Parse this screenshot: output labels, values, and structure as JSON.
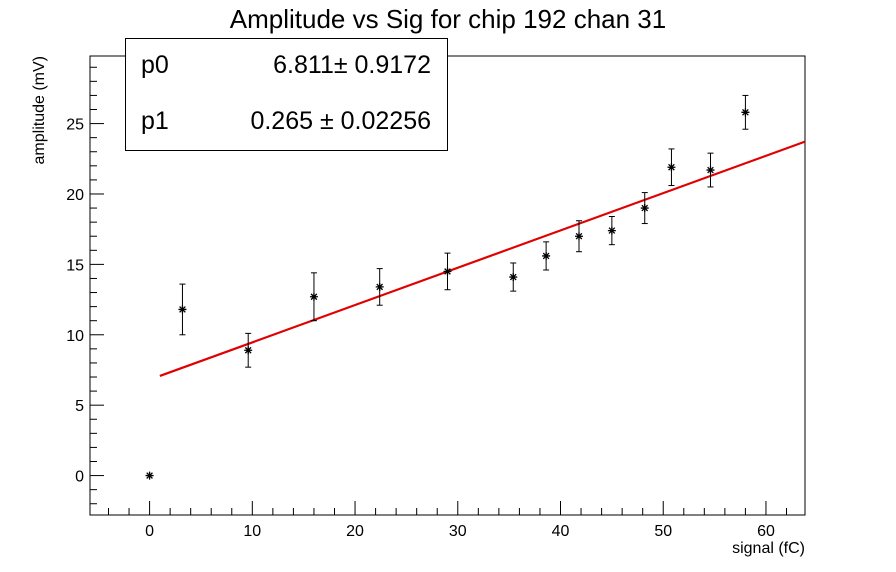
{
  "chart_data": {
    "type": "scatter",
    "title": "Amplitude vs Sig for chip 192 chan 31",
    "xlabel": "signal (fC)",
    "ylabel": "amplitude (mV)",
    "xlim": [
      -5.8,
      63.8
    ],
    "ylim": [
      -2.8,
      29.8
    ],
    "x_ticks": [
      0,
      10,
      20,
      30,
      40,
      50,
      60
    ],
    "y_ticks": [
      0,
      5,
      10,
      15,
      20,
      25
    ],
    "grid": false,
    "points": [
      {
        "x": 0.0,
        "y": 0.0,
        "err": 0.0
      },
      {
        "x": 3.2,
        "y": 11.8,
        "err": 1.8
      },
      {
        "x": 9.6,
        "y": 8.9,
        "err": 1.2
      },
      {
        "x": 16.0,
        "y": 12.7,
        "err": 1.7
      },
      {
        "x": 22.4,
        "y": 13.4,
        "err": 1.3
      },
      {
        "x": 29.0,
        "y": 14.5,
        "err": 1.3
      },
      {
        "x": 35.4,
        "y": 14.1,
        "err": 1.0
      },
      {
        "x": 38.6,
        "y": 15.6,
        "err": 1.0
      },
      {
        "x": 41.8,
        "y": 17.0,
        "err": 1.1
      },
      {
        "x": 45.0,
        "y": 17.4,
        "err": 1.0
      },
      {
        "x": 48.2,
        "y": 19.0,
        "err": 1.1
      },
      {
        "x": 50.8,
        "y": 21.9,
        "err": 1.3
      },
      {
        "x": 54.6,
        "y": 21.7,
        "err": 1.2
      },
      {
        "x": 58.0,
        "y": 25.8,
        "err": 1.2
      }
    ],
    "fit": {
      "type": "linear",
      "color": "#e00000",
      "x_range": [
        1.0,
        63.8
      ],
      "p0": 6.811,
      "p1": 0.265
    },
    "stats_box": {
      "position": "top-left",
      "rows": [
        {
          "name": "p0",
          "value": "6.811± 0.9172"
        },
        {
          "name": "p1",
          "value": "0.265 ± 0.02256"
        }
      ]
    }
  }
}
